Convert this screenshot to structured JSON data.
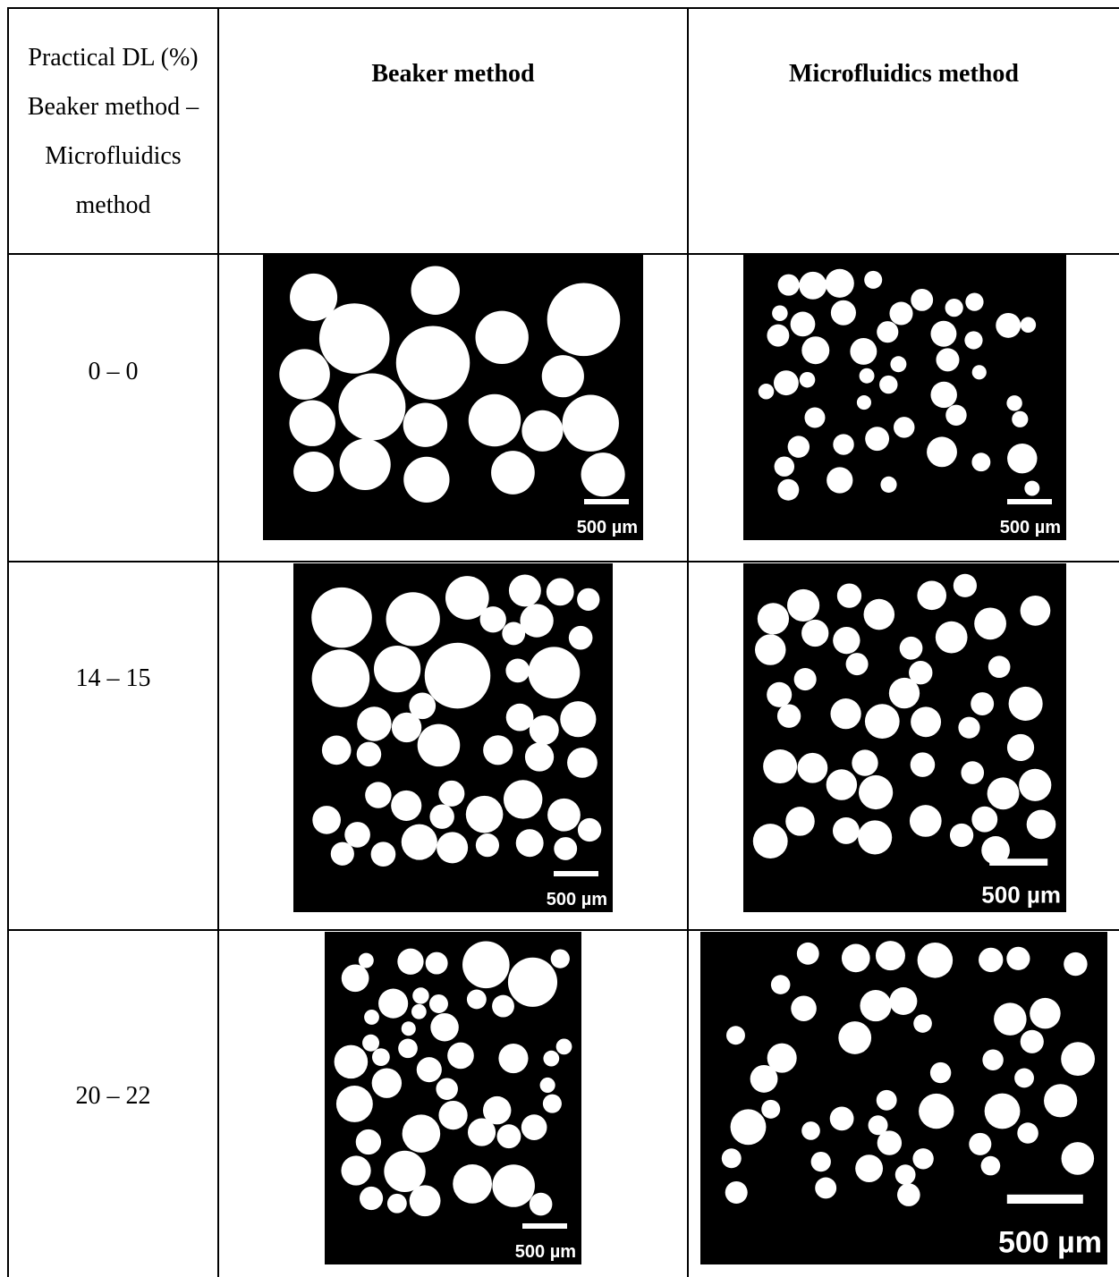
{
  "table": {
    "header": [
      "Practical DL (%) Beaker method – Microfluidics method",
      "Beaker method",
      "Microfluidics method"
    ],
    "rows": [
      {
        "dl": "0 – 0",
        "beaker_scale": "500 µm",
        "micro_scale": "500 µm"
      },
      {
        "dl": "14 – 15",
        "beaker_scale": "500 µm",
        "micro_scale": "500 µm"
      },
      {
        "dl": "20 – 22",
        "beaker_scale": "500 µm",
        "micro_scale": "500 µm"
      }
    ]
  }
}
